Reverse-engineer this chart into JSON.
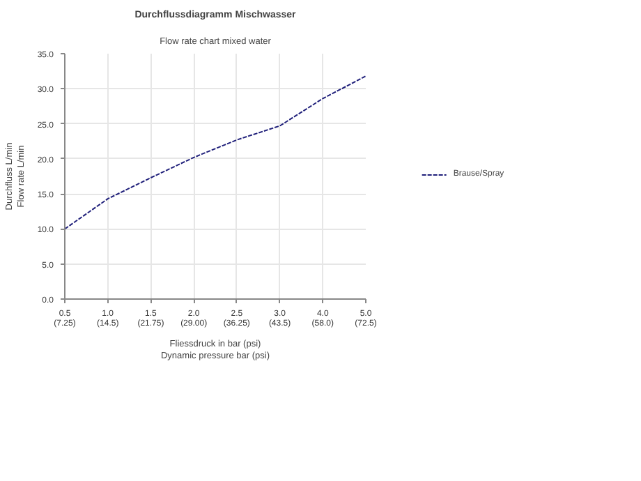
{
  "chart_data": {
    "type": "line",
    "title": "Durchflussdiagramm Mischwasser",
    "subtitle": "Flow rate chart mixed water",
    "xlabel": "Fliessdruck in bar (psi)\nDynamic pressure bar (psi)",
    "ylabel": "Durchfluss L/min\nFlow rate L/min",
    "categories": [
      "0.5\n(7.25)",
      "1.0\n(14.5)",
      "1.5\n(21.75)",
      "2.0\n(29.00)",
      "2.5\n(36.25)",
      "3.0\n(43.5)",
      "4.0\n(58.0)",
      "5.0\n(72.5)"
    ],
    "series": [
      {
        "name": "Brause/Spray",
        "color": "#1f1f7a",
        "values": [
          10.0,
          14.3,
          17.3,
          20.2,
          22.7,
          24.7,
          28.6,
          31.8
        ]
      }
    ],
    "ylim": [
      0,
      35
    ],
    "yticks": [
      {
        "value": 0,
        "label": "0.0"
      },
      {
        "value": 5,
        "label": "5.0"
      },
      {
        "value": 10,
        "label": "10.0"
      },
      {
        "value": 15,
        "label": "15.0"
      },
      {
        "value": 20,
        "label": "20.0"
      },
      {
        "value": 25,
        "label": "25.0"
      },
      {
        "value": 30,
        "label": "30.0"
      },
      {
        "value": 35,
        "label": "35.0"
      }
    ],
    "grid": true,
    "legend": "right",
    "line_style": "dashed",
    "marker": "none"
  }
}
